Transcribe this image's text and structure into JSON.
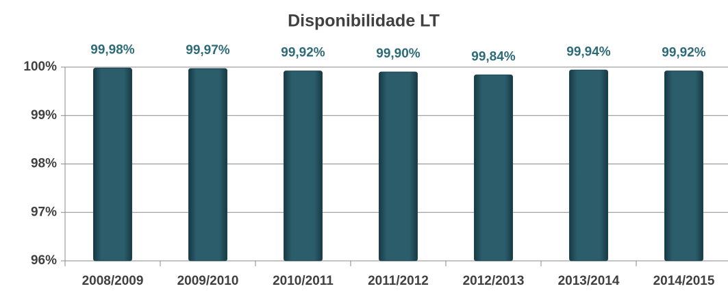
{
  "chart_data": {
    "type": "bar",
    "title": "Disponibilidade LT",
    "categories": [
      "2008/2009",
      "2009/2010",
      "2010/2011",
      "2011/2012",
      "2012/2013",
      "2013/2014",
      "2014/2015"
    ],
    "values": [
      99.98,
      99.97,
      99.92,
      99.9,
      99.84,
      99.94,
      99.92
    ],
    "value_labels": [
      "99,98%",
      "99,97%",
      "99,92%",
      "99,90%",
      "99,84%",
      "99,94%",
      "99,92%"
    ],
    "color": "#2b5d6b",
    "ylim": [
      96,
      100
    ],
    "yticks": [
      {
        "value": 96,
        "label": "96%"
      },
      {
        "value": 97,
        "label": "97%"
      },
      {
        "value": 98,
        "label": "98%"
      },
      {
        "value": 99,
        "label": "99%"
      },
      {
        "value": 100,
        "label": "100%"
      }
    ],
    "grid": true
  }
}
